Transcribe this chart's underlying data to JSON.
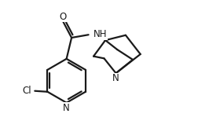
{
  "bg_color": "#ffffff",
  "line_color": "#1a1a1a",
  "line_width": 1.6,
  "font_size": 8.5,
  "xlim": [
    -1.5,
    3.2
  ],
  "ylim": [
    -1.3,
    1.8
  ]
}
